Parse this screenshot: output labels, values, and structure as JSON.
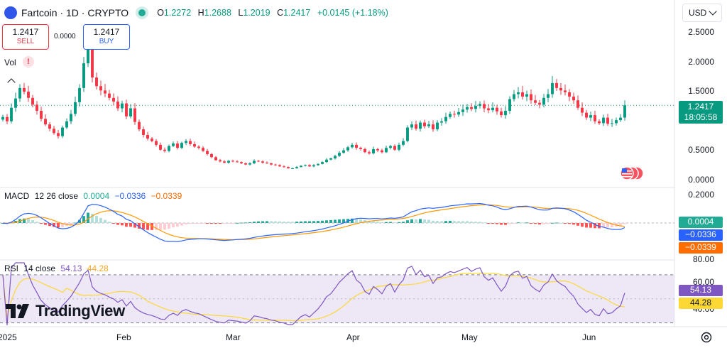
{
  "header": {
    "symbol": "Fartcoin · 1D · CRYPTO",
    "open_label": "O",
    "open": "1.2272",
    "high_label": "H",
    "high": "1.2688",
    "low_label": "L",
    "low": "1.2019",
    "close_label": "C",
    "close": "1.2417",
    "change": "+0.0145 (+1.18%)"
  },
  "currency": "USD",
  "trade": {
    "sell_price": "1.2417",
    "sell_label": "SELL",
    "buy_price": "1.2417",
    "buy_label": "BUY",
    "spread": "0.0000"
  },
  "volume": {
    "label": "Vol",
    "warning": "!"
  },
  "price_axis": [
    "2.5000",
    "2.0000",
    "1.5000",
    "1.0000",
    "0.5000",
    "0.0000"
  ],
  "price_tag": {
    "price": "1.2417",
    "countdown": "18:05:58"
  },
  "macd": {
    "name": "MACD",
    "settings": "12 26 close",
    "hist": "0.0004",
    "macd": "−0.0336",
    "signal": "−0.0339",
    "axis": [
      "0.2000"
    ]
  },
  "rsi": {
    "name": "RSI",
    "settings": "14 close",
    "value": "54.13",
    "ma": "44.28",
    "axis": [
      "80.00",
      "60.00",
      "40.00"
    ]
  },
  "x_axis": [
    "2025",
    "Feb",
    "Mar",
    "Apr",
    "May",
    "Jun"
  ],
  "brand": "TradingView",
  "colors": {
    "up": "#089981",
    "down": "#f23645",
    "macd": "#2962ff",
    "signal": "#ff9800",
    "rsi": "#7e57c2",
    "rsi_ma": "#fdd835",
    "rsi_band": "#ede7f6"
  },
  "chart_data": {
    "type": "candlestick",
    "interval": "1D",
    "x_range": [
      "2024-12-29",
      "2025-06-10"
    ],
    "price_ylim": [
      0,
      2.6
    ],
    "series_close": [
      1.05,
      0.98,
      1.2,
      1.35,
      1.52,
      1.46,
      1.36,
      1.25,
      1.15,
      1.02,
      0.93,
      0.86,
      0.79,
      0.74,
      0.88,
      0.98,
      1.1,
      1.29,
      1.52,
      1.92,
      2.14,
      1.69,
      1.55,
      1.48,
      1.43,
      1.36,
      1.3,
      1.19,
      1.27,
      1.06,
      1.19,
      0.97,
      0.85,
      0.76,
      0.7,
      0.66,
      0.6,
      0.52,
      0.5,
      0.58,
      0.62,
      0.55,
      0.63,
      0.66,
      0.61,
      0.57,
      0.55,
      0.5,
      0.45,
      0.4,
      0.35,
      0.33,
      0.31,
      0.34,
      0.33,
      0.32,
      0.3,
      0.28,
      0.3,
      0.34,
      0.33,
      0.31,
      0.3,
      0.28,
      0.27,
      0.25,
      0.24,
      0.22,
      0.22,
      0.24,
      0.26,
      0.27,
      0.25,
      0.27,
      0.29,
      0.32,
      0.36,
      0.38,
      0.42,
      0.47,
      0.51,
      0.56,
      0.6,
      0.55,
      0.53,
      0.48,
      0.46,
      0.53,
      0.51,
      0.48,
      0.55,
      0.58,
      0.52,
      0.6,
      0.66,
      0.88,
      0.93,
      0.86,
      0.96,
      0.9,
      0.93,
      0.85,
      0.96,
      0.98,
      1.05,
      1.1,
      1.09,
      1.13,
      1.17,
      1.21,
      1.18,
      1.23,
      1.26,
      1.19,
      1.16,
      1.2,
      1.14,
      1.08,
      1.15,
      1.34,
      1.42,
      1.45,
      1.38,
      1.42,
      1.32,
      1.28,
      1.25,
      1.36,
      1.42,
      1.6,
      1.52,
      1.48,
      1.45,
      1.38,
      1.32,
      1.2,
      1.12,
      1.04,
      1.08,
      0.98,
      0.95,
      1.04,
      0.94,
      0.95,
      1.0,
      1.04,
      1.24
    ],
    "macd_range": [
      -0.35,
      0.26
    ],
    "rsi_range": [
      28,
      80
    ],
    "rsi_levels": [
      70,
      30
    ]
  }
}
